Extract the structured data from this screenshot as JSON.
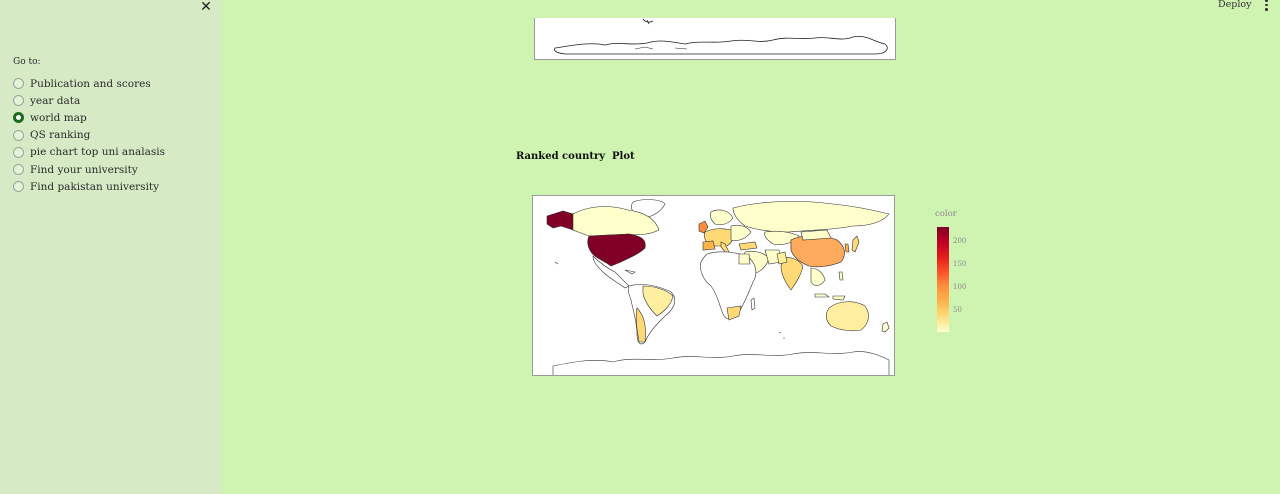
{
  "sidebar": {
    "close_icon": "close-icon",
    "goto_label": "Go to:",
    "options": [
      {
        "label": "Publication and scores",
        "checked": false
      },
      {
        "label": "year data",
        "checked": false
      },
      {
        "label": "world map",
        "checked": true
      },
      {
        "label": "QS ranking",
        "checked": false
      },
      {
        "label": "pie chart top uni analasis",
        "checked": false
      },
      {
        "label": "Find your university",
        "checked": false
      },
      {
        "label": "Find pakistan university",
        "checked": false
      }
    ]
  },
  "header": {
    "deploy_label": "Deploy",
    "menu_icon": "kebab-menu-icon"
  },
  "main": {
    "chart_title": "Ranked country  Plot",
    "legend": {
      "title": "color",
      "ticks": [
        "200",
        "150",
        "100",
        "50"
      ],
      "colors": [
        "#800026",
        "#bd0026",
        "#e31a1c",
        "#fd8d3c",
        "#feb24c",
        "#fed976",
        "#ffffcc"
      ]
    }
  },
  "colors": {
    "page_bg": "#cff3b1",
    "sidebar_bg": "#d6eac6",
    "radio_checked": "#1c6b1c"
  }
}
